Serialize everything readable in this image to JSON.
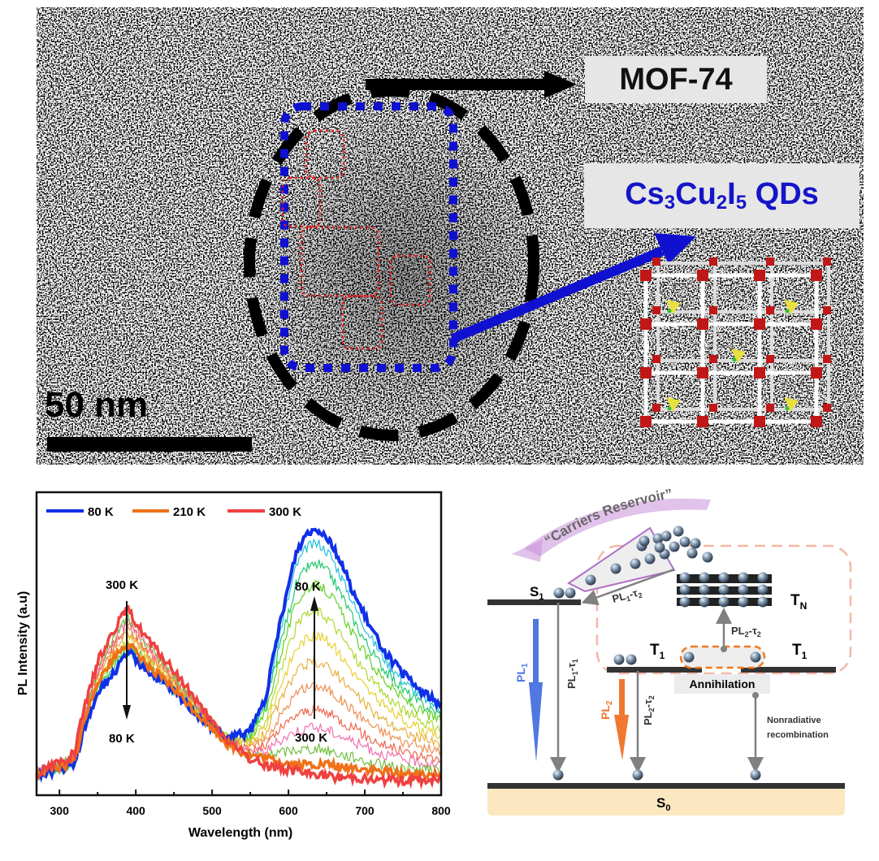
{
  "tem_panel": {
    "labels": {
      "mof": "MOF-74",
      "qd_parts": [
        {
          "text": "Cs",
          "sub": "3"
        },
        {
          "text": "Cu",
          "sub": "2"
        },
        {
          "text": "I",
          "sub": "5"
        },
        {
          "text": " QDs",
          "sub": ""
        }
      ]
    },
    "scale_bar_label": "50 nm",
    "colors": {
      "qd_label": "#1515c8",
      "qd_outline": "#1010d0",
      "nanocrystal_outline": "#e02020",
      "mof_outline": "#000000",
      "label_bg": "#e6e6e6"
    },
    "nanocrystal_box_count": 5,
    "icons": [
      "mof-lattice-icon"
    ]
  },
  "chart_data": {
    "type": "line",
    "title": "",
    "xlabel": "Wavelength (nm)",
    "ylabel": "PL Intensity (a.u)",
    "xlim": [
      270,
      800
    ],
    "ylim": [
      0,
      1
    ],
    "xticks": [
      300,
      400,
      500,
      600,
      700,
      800
    ],
    "yticks": [],
    "grid": false,
    "legend": {
      "placement": "top-left",
      "orientation": "horizontal",
      "entries": [
        {
          "label": "80 K",
          "color": "#1030e8"
        },
        {
          "label": "210 K",
          "color": "#f07018"
        },
        {
          "label": "300 K",
          "color": "#f04040"
        }
      ]
    },
    "x": [
      270,
      290,
      310,
      320,
      330,
      350,
      370,
      385,
      390,
      400,
      420,
      450,
      480,
      500,
      520,
      540,
      550,
      570,
      590,
      610,
      625,
      640,
      655,
      670,
      690,
      710,
      730,
      750,
      770,
      800
    ],
    "series": [
      {
        "name": "80 K",
        "color": "#1030e8",
        "values": [
          0.06,
          0.08,
          0.09,
          0.1,
          0.2,
          0.34,
          0.4,
          0.45,
          0.47,
          0.45,
          0.4,
          0.34,
          0.27,
          0.22,
          0.19,
          0.2,
          0.21,
          0.32,
          0.58,
          0.8,
          0.87,
          0.88,
          0.84,
          0.76,
          0.64,
          0.54,
          0.46,
          0.4,
          0.35,
          0.3
        ]
      },
      {
        "name": "210 K",
        "color": "#f07018",
        "values": [
          0.07,
          0.09,
          0.1,
          0.11,
          0.22,
          0.38,
          0.45,
          0.49,
          0.5,
          0.47,
          0.42,
          0.35,
          0.27,
          0.22,
          0.17,
          0.14,
          0.13,
          0.12,
          0.11,
          0.1,
          0.1,
          0.1,
          0.1,
          0.09,
          0.09,
          0.08,
          0.08,
          0.07,
          0.07,
          0.07
        ]
      },
      {
        "name": "300 K",
        "color": "#f04040",
        "values": [
          0.07,
          0.1,
          0.12,
          0.14,
          0.26,
          0.44,
          0.54,
          0.6,
          0.61,
          0.57,
          0.5,
          0.41,
          0.31,
          0.24,
          0.18,
          0.14,
          0.12,
          0.1,
          0.09,
          0.08,
          0.07,
          0.07,
          0.06,
          0.06,
          0.06,
          0.05,
          0.05,
          0.05,
          0.05,
          0.05
        ]
      }
    ],
    "intermediate_series": {
      "description": "Gradient of temperatures between 80 K and 300 K",
      "colors": [
        "#20c0d8",
        "#20c870",
        "#60d020",
        "#b0d830",
        "#e8d030",
        "#e8b040",
        "#f09050",
        "#f06850",
        "#f070b0",
        "#70c040"
      ],
      "peak2_values": [
        0.83,
        0.76,
        0.69,
        0.6,
        0.52,
        0.43,
        0.35,
        0.27,
        0.21,
        0.14
      ]
    },
    "annotations": [
      {
        "text": "300 K",
        "position": "above first peak",
        "arrow": "down"
      },
      {
        "text": "80 K",
        "position": "below first peak"
      },
      {
        "text": "80 K",
        "position": "top of second peak",
        "arrow": "up"
      },
      {
        "text": "300 K",
        "position": "bottom of second peak"
      }
    ]
  },
  "diagram": {
    "title_curved": "“Carriers Reservoir”",
    "levels": {
      "s1": {
        "main": "S",
        "sub": "1"
      },
      "tn": {
        "main": "T",
        "sub": "N"
      },
      "t1_left": {
        "main": "T",
        "sub": "1"
      },
      "t1_right": {
        "main": "T",
        "sub": "1"
      },
      "s0": {
        "main": "S",
        "sub": "0"
      }
    },
    "transitions": {
      "pl1_tau2": {
        "main": "PL",
        "sub1": "1",
        "mid": "-τ",
        "sub2": "2"
      },
      "pl2_tau2_up": {
        "main": "PL",
        "sub1": "2",
        "mid": "-τ",
        "sub2": "2"
      },
      "pl1_tau1": {
        "main": "PL",
        "sub1": "1",
        "mid": "-τ",
        "sub2": "1"
      },
      "pl2_tau2_down": {
        "main": "PL",
        "sub1": "2",
        "mid": "-τ",
        "sub2": "2"
      },
      "pl1": {
        "main": "PL",
        "sub": "1"
      },
      "pl2": {
        "main": "PL",
        "sub": "2"
      }
    },
    "annihilation": "Annihilation",
    "nonradiative": [
      "Nonradiative",
      "recombination"
    ],
    "colors": {
      "pl1": "#5078e0",
      "pl2": "#f07830",
      "reservoir": "#c890d8",
      "dashed_box": "#f4b8a8",
      "annihilation_oval": "#f07820",
      "s0_band": "#fbe8c0",
      "level": "#333333"
    }
  }
}
